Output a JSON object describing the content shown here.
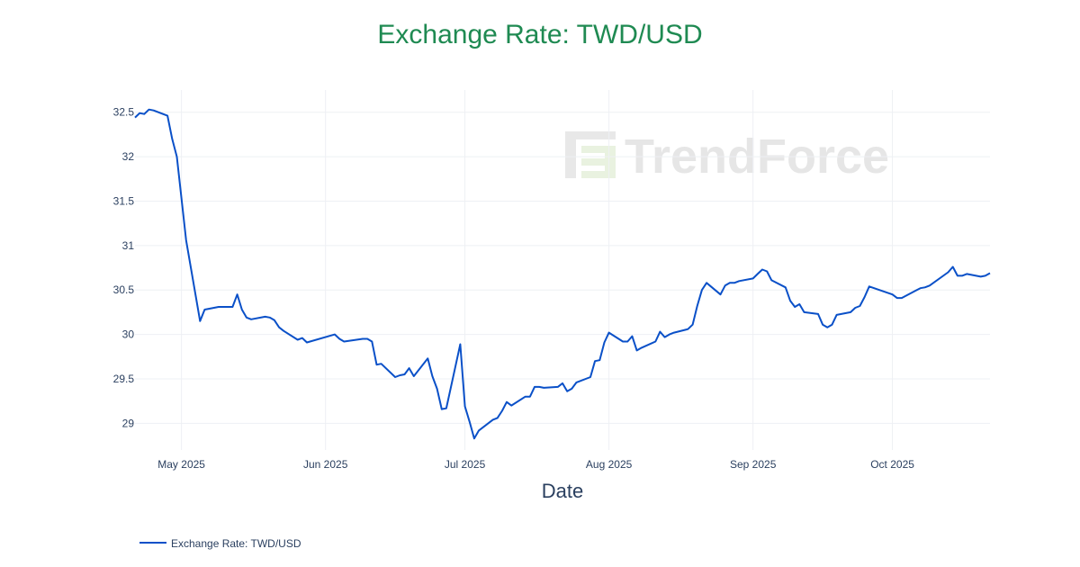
{
  "chart_data": {
    "type": "line",
    "title": "Exchange Rate: TWD/USD",
    "xlabel": "Date",
    "ylabel": "",
    "xlim": [
      "2025-04-21",
      "2025-10-22"
    ],
    "ylim": [
      28.7,
      32.75
    ],
    "grid": true,
    "legend_position": "bottom-left",
    "x_ticks": [
      {
        "date": "2025-05-01",
        "label": "May 2025"
      },
      {
        "date": "2025-06-01",
        "label": "Jun 2025"
      },
      {
        "date": "2025-07-01",
        "label": "Jul 2025"
      },
      {
        "date": "2025-08-01",
        "label": "Aug 2025"
      },
      {
        "date": "2025-09-01",
        "label": "Sep 2025"
      },
      {
        "date": "2025-10-01",
        "label": "Oct 2025"
      }
    ],
    "y_ticks": [
      {
        "value": 29,
        "label": "29"
      },
      {
        "value": 29.5,
        "label": "29.5"
      },
      {
        "value": 30,
        "label": "30"
      },
      {
        "value": 30.5,
        "label": "30.5"
      },
      {
        "value": 31,
        "label": "31"
      },
      {
        "value": 31.5,
        "label": "31.5"
      },
      {
        "value": 32,
        "label": "32"
      },
      {
        "value": 32.5,
        "label": "32.5"
      }
    ],
    "series": [
      {
        "name": "Exchange Rate: TWD/USD",
        "color": "#0a50c8",
        "x": [
          "2025-04-21",
          "2025-04-22",
          "2025-04-23",
          "2025-04-24",
          "2025-04-25",
          "2025-04-28",
          "2025-04-29",
          "2025-04-30",
          "2025-05-02",
          "2025-05-05",
          "2025-05-06",
          "2025-05-07",
          "2025-05-08",
          "2025-05-09",
          "2025-05-12",
          "2025-05-13",
          "2025-05-14",
          "2025-05-15",
          "2025-05-16",
          "2025-05-19",
          "2025-05-20",
          "2025-05-21",
          "2025-05-22",
          "2025-05-23",
          "2025-05-26",
          "2025-05-27",
          "2025-05-28",
          "2025-06-03",
          "2025-06-04",
          "2025-06-05",
          "2025-06-09",
          "2025-06-10",
          "2025-06-11",
          "2025-06-12",
          "2025-06-13",
          "2025-06-16",
          "2025-06-17",
          "2025-06-18",
          "2025-06-19",
          "2025-06-20",
          "2025-06-23",
          "2025-06-24",
          "2025-06-25",
          "2025-06-26",
          "2025-06-27",
          "2025-06-30",
          "2025-07-01",
          "2025-07-02",
          "2025-07-03",
          "2025-07-04",
          "2025-07-07",
          "2025-07-08",
          "2025-07-09",
          "2025-07-10",
          "2025-07-11",
          "2025-07-14",
          "2025-07-15",
          "2025-07-16",
          "2025-07-17",
          "2025-07-18",
          "2025-07-21",
          "2025-07-22",
          "2025-07-23",
          "2025-07-24",
          "2025-07-25",
          "2025-07-28",
          "2025-07-29",
          "2025-07-30",
          "2025-07-31",
          "2025-08-01",
          "2025-08-04",
          "2025-08-05",
          "2025-08-06",
          "2025-08-07",
          "2025-08-08",
          "2025-08-11",
          "2025-08-12",
          "2025-08-13",
          "2025-08-14",
          "2025-08-15",
          "2025-08-18",
          "2025-08-19",
          "2025-08-20",
          "2025-08-21",
          "2025-08-22",
          "2025-08-25",
          "2025-08-26",
          "2025-08-27",
          "2025-08-28",
          "2025-08-29",
          "2025-09-01",
          "2025-09-02",
          "2025-09-03",
          "2025-09-04",
          "2025-09-05",
          "2025-09-08",
          "2025-09-09",
          "2025-09-10",
          "2025-09-11",
          "2025-09-12",
          "2025-09-15",
          "2025-09-16",
          "2025-09-17",
          "2025-09-18",
          "2025-09-19",
          "2025-09-22",
          "2025-09-23",
          "2025-09-24",
          "2025-09-25",
          "2025-09-26",
          "2025-10-01",
          "2025-10-02",
          "2025-10-03",
          "2025-10-07",
          "2025-10-08",
          "2025-10-09",
          "2025-10-13",
          "2025-10-14",
          "2025-10-15",
          "2025-10-16",
          "2025-10-17",
          "2025-10-20",
          "2025-10-21",
          "2025-10-22"
        ],
        "values": [
          32.44,
          32.49,
          32.48,
          32.53,
          32.52,
          32.46,
          32.2,
          32.0,
          31.06,
          30.15,
          30.28,
          30.29,
          30.3,
          30.31,
          30.31,
          30.45,
          30.28,
          30.19,
          30.17,
          30.2,
          30.19,
          30.16,
          30.08,
          30.04,
          29.94,
          29.96,
          29.91,
          30.0,
          29.95,
          29.92,
          29.95,
          29.95,
          29.92,
          29.66,
          29.67,
          29.52,
          29.54,
          29.55,
          29.62,
          29.53,
          29.73,
          29.53,
          29.39,
          29.16,
          29.17,
          29.89,
          29.19,
          29.02,
          28.83,
          28.92,
          29.04,
          29.06,
          29.14,
          29.24,
          29.2,
          29.3,
          29.3,
          29.41,
          29.41,
          29.4,
          29.41,
          29.45,
          29.36,
          29.39,
          29.46,
          29.52,
          29.7,
          29.71,
          29.91,
          30.02,
          29.92,
          29.92,
          29.98,
          29.82,
          29.85,
          29.92,
          30.03,
          29.97,
          30.0,
          30.02,
          30.06,
          30.11,
          30.32,
          30.5,
          30.58,
          30.45,
          30.55,
          30.58,
          30.58,
          30.6,
          30.63,
          30.68,
          30.73,
          30.71,
          30.61,
          30.53,
          30.38,
          30.31,
          30.34,
          30.25,
          30.23,
          30.11,
          30.08,
          30.11,
          30.22,
          30.25,
          30.3,
          30.32,
          30.42,
          30.54,
          30.45,
          30.41,
          30.41,
          30.52,
          30.53,
          30.55,
          30.7,
          30.76,
          30.66,
          30.66,
          30.68,
          30.65,
          30.66,
          30.69
        ]
      }
    ]
  },
  "watermark": {
    "brand": "TrendForce",
    "logo_icon": "trendforce-logo-icon"
  }
}
